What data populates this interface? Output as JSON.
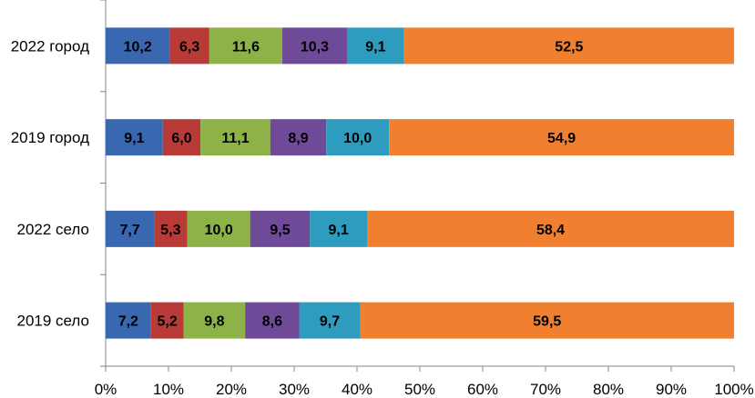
{
  "chart_data": {
    "type": "bar",
    "orientation": "horizontal",
    "stacked": "percent",
    "categories": [
      "2022 город",
      "2019 город",
      "2022 село",
      "2019 село"
    ],
    "series": [
      {
        "values": [
          10.2,
          9.1,
          7.7,
          7.2
        ],
        "labels": [
          "10,2",
          "9,1",
          "7,7",
          "7,2"
        ],
        "color": "#3a68b0"
      },
      {
        "values": [
          6.3,
          6.0,
          5.3,
          5.2
        ],
        "labels": [
          "6,3",
          "6,0",
          "5,3",
          "5,2"
        ],
        "color": "#b83b38"
      },
      {
        "values": [
          11.6,
          11.1,
          10.0,
          9.8
        ],
        "labels": [
          "11,6",
          "11,1",
          "10,0",
          "9,8"
        ],
        "color": "#8db348"
      },
      {
        "values": [
          10.3,
          8.9,
          9.5,
          8.6
        ],
        "labels": [
          "10,3",
          "8,9",
          "9,5",
          "8,6"
        ],
        "color": "#6f4a99"
      },
      {
        "values": [
          9.1,
          10.0,
          9.1,
          9.7
        ],
        "labels": [
          "9,1",
          "10,0",
          "9,1",
          "9,7"
        ],
        "color": "#2d9cbf"
      },
      {
        "values": [
          52.5,
          54.9,
          58.4,
          59.5
        ],
        "labels": [
          "52,5",
          "54,9",
          "58,4",
          "59,5"
        ],
        "color": "#f08030"
      }
    ],
    "x_ticks": [
      "0%",
      "10%",
      "20%",
      "30%",
      "40%",
      "50%",
      "60%",
      "70%",
      "80%",
      "90%",
      "100%"
    ],
    "xlim": [
      0,
      100
    ],
    "title": "",
    "xlabel": "",
    "ylabel": "",
    "grid": false,
    "legend": "none"
  }
}
